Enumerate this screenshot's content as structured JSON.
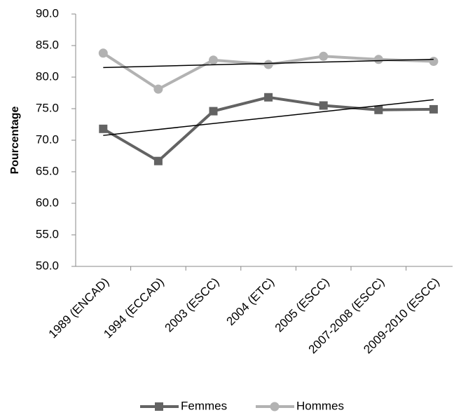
{
  "chart_data": {
    "type": "line",
    "y_label": "Pourcentage",
    "categories": [
      "1989 (ENCAD)",
      "1994 (ECCAD)",
      "2003 (ESCC)",
      "2004 (ETC)",
      "2005 (ESCC)",
      "2007-2008 (ESCC)",
      "2009-2010 (ESCC)"
    ],
    "series": [
      {
        "name": "Femmes",
        "color": "#636363",
        "marker": "square",
        "trendline": true,
        "values": [
          71.8,
          66.7,
          74.6,
          76.8,
          75.5,
          74.8,
          74.9
        ]
      },
      {
        "name": "Hommes",
        "color": "#b2b2b2",
        "marker": "circle",
        "trendline": true,
        "values": [
          83.8,
          78.1,
          82.7,
          82.0,
          83.3,
          82.8,
          82.5
        ]
      }
    ],
    "ylim": [
      50,
      90
    ],
    "yticks": [
      {
        "value": 50,
        "label": "50.0"
      },
      {
        "value": 55,
        "label": "55.0"
      },
      {
        "value": 60,
        "label": "60.0"
      },
      {
        "value": 65,
        "label": "65.0"
      },
      {
        "value": 70,
        "label": "70.0"
      },
      {
        "value": 75,
        "label": "75.0"
      },
      {
        "value": 80,
        "label": "80.0"
      },
      {
        "value": 85,
        "label": "85.0"
      },
      {
        "value": 90,
        "label": "90.0"
      }
    ],
    "grid": false,
    "legend": "bottom"
  }
}
